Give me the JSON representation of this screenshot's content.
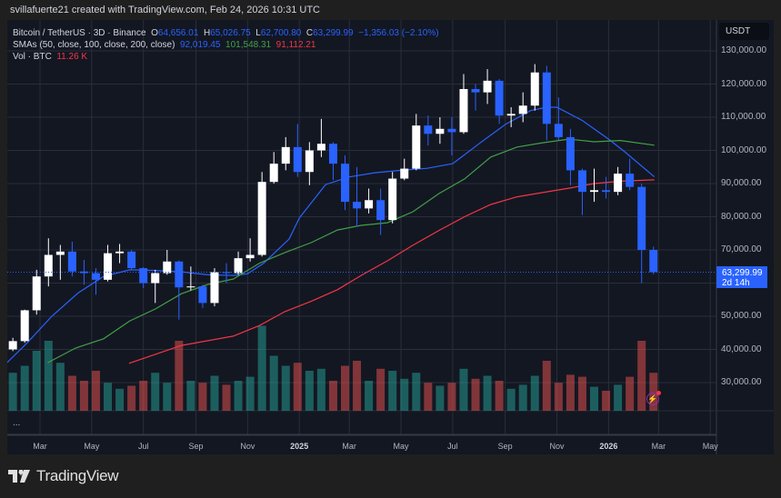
{
  "credit": "svillafuerte21 created with TradingView.com, Feb 24, 2026 10:31 UTC",
  "legend": {
    "symbol": "Bitcoin / TetherUS · 3D · Binance",
    "o_label": "O",
    "o": "64,656.01",
    "h_label": "H",
    "h": "65,026.75",
    "l_label": "L",
    "l": "62,700.80",
    "c_label": "C",
    "c": "63,299.99",
    "change": "−1,356.03 (−2.10%)",
    "sma_label": "SMAs (50, close, 100, close, 200, close)",
    "sma50": "92,019.45",
    "sma100": "101,548.31",
    "sma200": "91,112.21",
    "vol_label": "Vol · BTC",
    "vol": "11.26 K"
  },
  "currency": "USDT",
  "current_price": {
    "price": "63,299.99",
    "countdown": "2d 14h",
    "value": 63299.99
  },
  "more_label": "...",
  "brand": "TradingView",
  "colors": {
    "up": "#ffffff",
    "down": "#2962ff",
    "sma50": "#2962ff",
    "sma100": "#43a047",
    "sma200": "#f23645",
    "vol_up": "#26a69a",
    "vol_down": "#ef5350",
    "bg": "#131722",
    "grid": "#2a2e39"
  },
  "icons": {
    "alert": "lightning-alert-icon",
    "logo": "tradingview-logo-icon"
  },
  "chart_data": {
    "type": "candlestick",
    "ylabel": "USDT",
    "ylim": [
      22000,
      135000
    ],
    "y_ticks": [
      30000,
      40000,
      50000,
      60000,
      70000,
      80000,
      90000,
      100000,
      110000,
      120000,
      130000
    ],
    "y_tick_labels": [
      "30,000.00",
      "40,000.00",
      "50,000.00",
      "",
      "70,000.00",
      "80,000.00",
      "90,000.00",
      "100,000.00",
      "110,000.00",
      "120,000.00",
      "130,000.00"
    ],
    "x_ticks": [
      {
        "date": "2024-03-01",
        "label": "Mar"
      },
      {
        "date": "2024-05-01",
        "label": "May"
      },
      {
        "date": "2024-07-01",
        "label": "Jul"
      },
      {
        "date": "2024-09-01",
        "label": "Sep"
      },
      {
        "date": "2024-11-01",
        "label": "Nov"
      },
      {
        "date": "2025-01-01",
        "label": "2025",
        "bold": true
      },
      {
        "date": "2025-03-01",
        "label": "Mar"
      },
      {
        "date": "2025-05-01",
        "label": "May"
      },
      {
        "date": "2025-07-01",
        "label": "Jul"
      },
      {
        "date": "2025-09-01",
        "label": "Sep"
      },
      {
        "date": "2025-11-01",
        "label": "Nov"
      },
      {
        "date": "2026-01-01",
        "label": "2026",
        "bold": true
      },
      {
        "date": "2026-03-01",
        "label": "Mar"
      },
      {
        "date": "2026-05-01",
        "label": "May"
      }
    ],
    "grid": true,
    "candles_ohlc_k": [
      [
        "2024-01-22",
        40.0,
        43.5,
        39.5,
        42.5
      ],
      [
        "2024-02-05",
        42.5,
        52.0,
        42.0,
        51.8
      ],
      [
        "2024-02-19",
        51.8,
        64.0,
        50.5,
        62.0
      ],
      [
        "2024-03-04",
        62.0,
        73.5,
        59.0,
        68.5
      ],
      [
        "2024-03-18",
        68.5,
        71.5,
        61.0,
        69.5
      ],
      [
        "2024-04-01",
        69.5,
        72.5,
        62.0,
        63.5
      ],
      [
        "2024-04-15",
        63.5,
        67.0,
        59.5,
        63.0
      ],
      [
        "2024-04-29",
        63.0,
        64.5,
        56.5,
        61.0
      ],
      [
        "2024-05-13",
        61.0,
        71.5,
        60.5,
        69.0
      ],
      [
        "2024-05-27",
        69.0,
        71.8,
        66.0,
        69.5
      ],
      [
        "2024-06-10",
        69.5,
        70.0,
        64.0,
        64.5
      ],
      [
        "2024-06-24",
        64.5,
        64.8,
        58.5,
        60.0
      ],
      [
        "2024-07-08",
        60.0,
        64.0,
        54.0,
        63.0
      ],
      [
        "2024-07-22",
        63.0,
        70.0,
        62.5,
        66.5
      ],
      [
        "2024-08-05",
        66.5,
        66.8,
        49.0,
        58.7
      ],
      [
        "2024-08-19",
        58.7,
        65.0,
        57.8,
        59.0
      ],
      [
        "2024-09-02",
        59.0,
        59.5,
        52.5,
        54.0
      ],
      [
        "2024-09-16",
        54.0,
        64.5,
        53.0,
        63.3
      ],
      [
        "2024-09-30",
        63.3,
        66.0,
        60.0,
        63.0
      ],
      [
        "2024-10-14",
        63.0,
        69.5,
        62.5,
        67.5
      ],
      [
        "2024-10-28",
        67.5,
        73.5,
        66.5,
        68.5
      ],
      [
        "2024-11-11",
        68.5,
        93.5,
        68.0,
        90.5
      ],
      [
        "2024-11-25",
        90.5,
        99.5,
        90.0,
        96.0
      ],
      [
        "2024-12-09",
        96.0,
        104.0,
        94.0,
        101.0
      ],
      [
        "2024-12-23",
        101.0,
        108.0,
        92.0,
        93.5
      ],
      [
        "2025-01-06",
        93.5,
        102.5,
        89.5,
        100.0
      ],
      [
        "2025-01-20",
        100.0,
        109.5,
        98.0,
        102.0
      ],
      [
        "2025-02-03",
        102.0,
        102.5,
        91.0,
        96.0
      ],
      [
        "2025-02-17",
        96.0,
        98.5,
        82.0,
        84.5
      ],
      [
        "2025-03-03",
        84.5,
        95.0,
        77.0,
        82.5
      ],
      [
        "2025-03-17",
        82.5,
        88.5,
        81.0,
        85.0
      ],
      [
        "2025-03-31",
        85.0,
        88.5,
        74.5,
        79.0
      ],
      [
        "2025-04-14",
        79.0,
        93.5,
        78.0,
        91.5
      ],
      [
        "2025-04-28",
        91.5,
        97.5,
        91.0,
        94.5
      ],
      [
        "2025-05-12",
        94.5,
        111.0,
        94.0,
        107.5
      ],
      [
        "2025-05-26",
        107.5,
        110.5,
        101.5,
        105.0
      ],
      [
        "2025-06-09",
        105.0,
        110.0,
        102.0,
        106.5
      ],
      [
        "2025-06-23",
        106.5,
        110.0,
        98.5,
        105.5
      ],
      [
        "2025-07-07",
        105.5,
        123.0,
        105.0,
        118.5
      ],
      [
        "2025-07-21",
        118.5,
        120.0,
        112.0,
        117.5
      ],
      [
        "2025-08-04",
        117.5,
        124.5,
        114.0,
        121.0
      ],
      [
        "2025-08-18",
        121.0,
        121.5,
        108.0,
        110.5
      ],
      [
        "2025-09-01",
        110.5,
        113.0,
        107.0,
        111.0
      ],
      [
        "2025-09-15",
        111.0,
        117.5,
        108.5,
        113.5
      ],
      [
        "2025-09-29",
        113.5,
        126.0,
        112.0,
        123.5
      ],
      [
        "2025-10-13",
        123.5,
        125.5,
        103.0,
        108.0
      ],
      [
        "2025-10-27",
        108.0,
        116.0,
        103.0,
        104.0
      ],
      [
        "2025-11-10",
        104.0,
        106.5,
        89.5,
        94.0
      ],
      [
        "2025-11-24",
        94.0,
        94.5,
        80.5,
        87.5
      ],
      [
        "2025-12-08",
        87.5,
        94.5,
        84.5,
        88.0
      ],
      [
        "2025-12-22",
        88.0,
        92.0,
        85.5,
        87.5
      ],
      [
        "2026-01-05",
        87.5,
        95.0,
        86.5,
        93.0
      ],
      [
        "2026-01-19",
        93.0,
        97.5,
        88.0,
        89.0
      ],
      [
        "2026-02-02",
        89.0,
        90.0,
        60.0,
        70.0
      ],
      [
        "2026-02-16",
        70.0,
        71.0,
        62.7,
        63.3
      ]
    ],
    "volume_k": [
      38,
      45,
      60,
      70,
      48,
      35,
      30,
      40,
      28,
      22,
      25,
      30,
      38,
      28,
      70,
      30,
      28,
      35,
      26,
      30,
      34,
      85,
      55,
      45,
      48,
      40,
      42,
      30,
      45,
      50,
      30,
      42,
      40,
      32,
      38,
      28,
      25,
      28,
      42,
      32,
      35,
      30,
      22,
      26,
      35,
      50,
      28,
      36,
      34,
      24,
      20,
      26,
      34,
      70,
      38
    ],
    "series": [
      {
        "name": "SMA 50",
        "color": "#2962ff",
        "points": [
          [
            "2024-01-22",
            36
          ],
          [
            "2024-02-15",
            42
          ],
          [
            "2024-03-15",
            50
          ],
          [
            "2024-04-15",
            57
          ],
          [
            "2024-05-15",
            62
          ],
          [
            "2024-06-15",
            64
          ],
          [
            "2024-07-15",
            63.8
          ],
          [
            "2024-08-15",
            63.4
          ],
          [
            "2024-09-15",
            62.5
          ],
          [
            "2024-10-15",
            62.3
          ],
          [
            "2024-11-01",
            62.8
          ],
          [
            "2024-11-20",
            66
          ],
          [
            "2024-12-20",
            73.3
          ],
          [
            "2025-01-01",
            79.6
          ],
          [
            "2025-02-01",
            89.7
          ],
          [
            "2025-03-01",
            92
          ],
          [
            "2025-04-01",
            93.3
          ],
          [
            "2025-05-01",
            94
          ],
          [
            "2025-06-01",
            94.6
          ],
          [
            "2025-07-01",
            96
          ],
          [
            "2025-08-01",
            102
          ],
          [
            "2025-09-01",
            107.8
          ],
          [
            "2025-10-01",
            112
          ],
          [
            "2025-10-20",
            113
          ],
          [
            "2025-11-01",
            113
          ],
          [
            "2025-12-01",
            109
          ],
          [
            "2026-01-01",
            103.4
          ],
          [
            "2026-01-20",
            99.6
          ],
          [
            "2026-02-24",
            92.02
          ]
        ]
      },
      {
        "name": "SMA 100",
        "color": "#43a047",
        "points": [
          [
            "2024-03-10",
            36
          ],
          [
            "2024-04-12",
            40.4
          ],
          [
            "2024-05-15",
            43.2
          ],
          [
            "2024-06-15",
            48.6
          ],
          [
            "2024-07-15",
            52.2
          ],
          [
            "2024-08-15",
            56.8
          ],
          [
            "2024-09-15",
            59.6
          ],
          [
            "2024-10-15",
            61.2
          ],
          [
            "2024-11-15",
            66
          ],
          [
            "2024-12-15",
            69.2
          ],
          [
            "2025-01-15",
            72.2
          ],
          [
            "2025-02-15",
            76
          ],
          [
            "2025-03-15",
            77.4
          ],
          [
            "2025-04-15",
            78.2
          ],
          [
            "2025-05-15",
            81.5
          ],
          [
            "2025-06-15",
            87
          ],
          [
            "2025-07-15",
            91.4
          ],
          [
            "2025-08-15",
            98
          ],
          [
            "2025-09-15",
            101
          ],
          [
            "2025-10-15",
            102.3
          ],
          [
            "2025-11-15",
            103.4
          ],
          [
            "2025-12-15",
            102.6
          ],
          [
            "2026-01-15",
            103
          ],
          [
            "2026-02-24",
            101.55
          ]
        ]
      },
      {
        "name": "SMA 200",
        "color": "#f23645",
        "points": [
          [
            "2024-06-14",
            35.8
          ],
          [
            "2024-08-15",
            41.2
          ],
          [
            "2024-10-15",
            44
          ],
          [
            "2024-11-15",
            47.2
          ],
          [
            "2024-12-15",
            51.4
          ],
          [
            "2025-01-15",
            54.5
          ],
          [
            "2025-02-15",
            58
          ],
          [
            "2025-03-15",
            62.3
          ],
          [
            "2025-04-15",
            66.7
          ],
          [
            "2025-05-15",
            71.4
          ],
          [
            "2025-06-15",
            75.9
          ],
          [
            "2025-07-15",
            80
          ],
          [
            "2025-08-15",
            83.7
          ],
          [
            "2025-09-15",
            86
          ],
          [
            "2025-10-15",
            87.3
          ],
          [
            "2025-11-15",
            88.6
          ],
          [
            "2025-12-15",
            90
          ],
          [
            "2026-01-15",
            90.7
          ],
          [
            "2026-02-24",
            91.11
          ]
        ]
      }
    ]
  }
}
